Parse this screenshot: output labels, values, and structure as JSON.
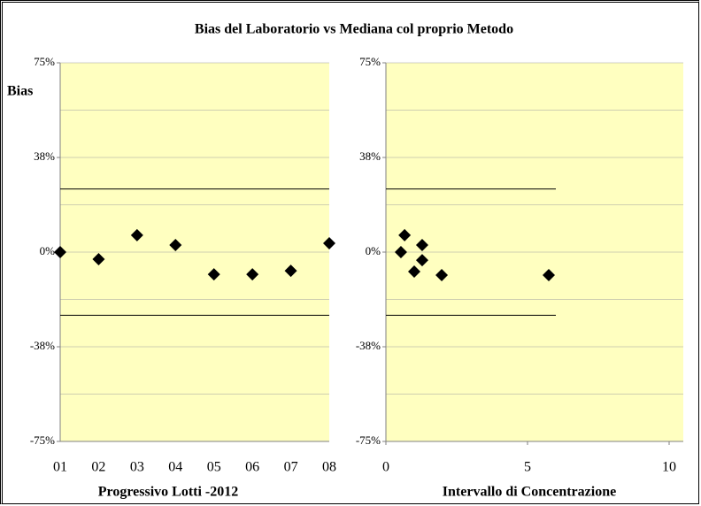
{
  "title": "Bias del Laboratorio vs Mediana col proprio Metodo",
  "chart_data": [
    {
      "type": "scatter",
      "y_label": "Bias",
      "x_label": "Progressivo Lotti -2012",
      "categories": [
        "01",
        "02",
        "03",
        "04",
        "05",
        "06",
        "07",
        "08"
      ],
      "values": [
        0,
        -2.8,
        6.7,
        2.8,
        -8.8,
        -8.8,
        -7.4,
        3.5
      ],
      "color": "#000000",
      "ylim": [
        -75,
        75
      ],
      "yticks": [
        {
          "value": 75,
          "label": "75%"
        },
        {
          "value": 37.5,
          "label": "38%"
        },
        {
          "value": 0,
          "label": "0%"
        },
        {
          "value": -37.5,
          "label": "-38%"
        },
        {
          "value": -75,
          "label": "-75%"
        }
      ],
      "yminor": [
        56.25,
        18.75,
        -18.75,
        -56.25
      ],
      "limits": [
        25,
        -25
      ],
      "grid": true
    },
    {
      "type": "scatter",
      "x_label": "Intervallo di Concentrazione",
      "x": [
        0.53,
        0.66,
        1.0,
        1.28,
        1.28,
        1.97,
        5.75
      ],
      "values": [
        0,
        6.7,
        -7.7,
        2.8,
        -3.2,
        -9.1,
        -9.1
      ],
      "color": "#000000",
      "xlim": [
        0,
        10.5
      ],
      "xticks": [
        0,
        5,
        10
      ],
      "ylim": [
        -75,
        75
      ],
      "yticks": [
        {
          "value": 75,
          "label": "75%"
        },
        {
          "value": 37.5,
          "label": "38%"
        },
        {
          "value": 0,
          "label": "0%"
        },
        {
          "value": -37.5,
          "label": "-38%"
        },
        {
          "value": -75,
          "label": "-75%"
        }
      ],
      "yminor": [
        56.25,
        18.75,
        -18.75,
        -56.25
      ],
      "limits": [
        25,
        -25
      ],
      "limit_x": [
        0,
        6
      ],
      "grid": true
    }
  ]
}
